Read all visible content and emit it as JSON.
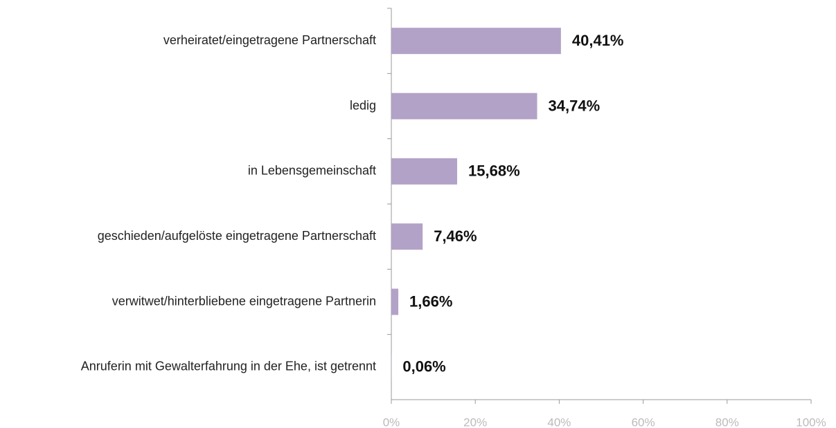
{
  "chart_data": {
    "type": "bar",
    "orientation": "horizontal",
    "categories": [
      "verheiratet/eingetragene Partnerschaft",
      "ledig",
      "in Lebensgemeinschaft",
      "geschieden/aufgelöste eingetragene Partnerschaft",
      "verwitwet/hinterbliebene eingetragene Partnerin",
      "Anruferin mit Gewalterfahrung in der Ehe, ist getrennt"
    ],
    "values": [
      40.41,
      34.74,
      15.68,
      7.46,
      1.66,
      0.06
    ],
    "value_labels": [
      "40,41%",
      "34,74%",
      "15,68%",
      "7,46%",
      "1,66%",
      "0,06%"
    ],
    "color": "#b3a2c7",
    "xlim": [
      0,
      100
    ],
    "xticks": [
      {
        "value": 0,
        "label": "0%"
      },
      {
        "value": 20,
        "label": "20%"
      },
      {
        "value": 40,
        "label": "40%"
      },
      {
        "value": 60,
        "label": "60%"
      },
      {
        "value": 80,
        "label": "80%"
      },
      {
        "value": 100,
        "label": "100%"
      }
    ],
    "grid": false
  }
}
